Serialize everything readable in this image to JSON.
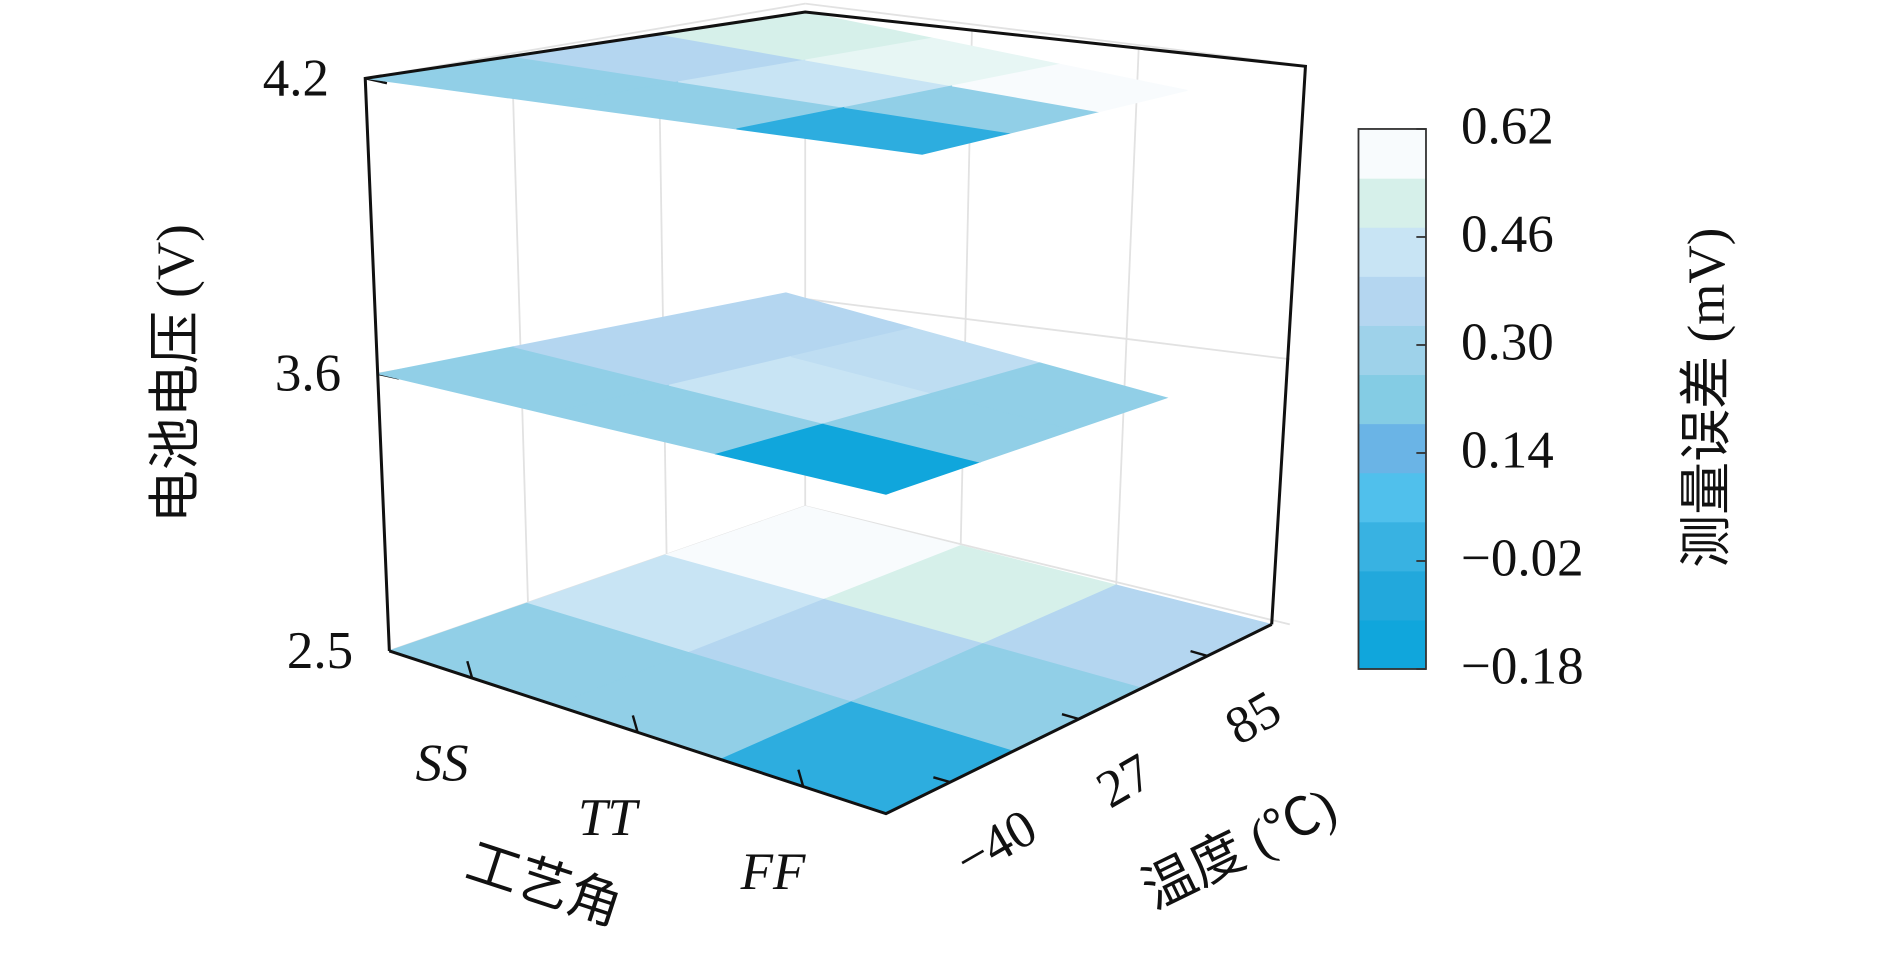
{
  "chart_data": {
    "type": "slice3d",
    "x_label": "工艺角",
    "y_label": "温度 (℃)",
    "z_label": "电池电压 (V)",
    "colorbar_label": "测量误差 (mV)",
    "x_categories": [
      "SS",
      "TT",
      "FF"
    ],
    "y_categories": [
      "−40",
      "27",
      "85"
    ],
    "zlim": [
      2.5,
      4.2
    ],
    "zticks": [
      2.5,
      3.6,
      4.2
    ],
    "slices": [
      {
        "z": 2.5,
        "values": [
          [
            0.26,
            0.46,
            0.62
          ],
          [
            0.26,
            0.38,
            0.54
          ],
          [
            -0.06,
            0.26,
            0.38
          ]
        ]
      },
      {
        "z": 3.6,
        "values": [
          [
            0.26,
            0.38,
            0.38
          ],
          [
            0.26,
            0.46,
            0.42
          ],
          [
            -0.18,
            0.26,
            0.26
          ]
        ]
      },
      {
        "z": 4.2,
        "values": [
          [
            0.26,
            0.38,
            0.54
          ],
          [
            0.26,
            0.46,
            0.58
          ],
          [
            -0.06,
            0.26,
            0.62
          ]
        ]
      }
    ],
    "clim": [
      -0.18,
      0.62
    ],
    "cticks": [
      {
        "value": -0.18,
        "label": "−0.18"
      },
      {
        "value": -0.02,
        "label": "−0.02"
      },
      0.14,
      {
        "value": 0.3,
        "label": "0.30"
      },
      0.46,
      0.62
    ],
    "colormap": [
      "#10a6dc",
      "#22a8dc",
      "#38b2e2",
      "#50c0ec",
      "#6ab4e6",
      "#84cce4",
      "#9ed2ea",
      "#b4d6f0",
      "#c8e4f4",
      "#d6f0ea",
      "#f8fbfd"
    ],
    "grid": true
  }
}
